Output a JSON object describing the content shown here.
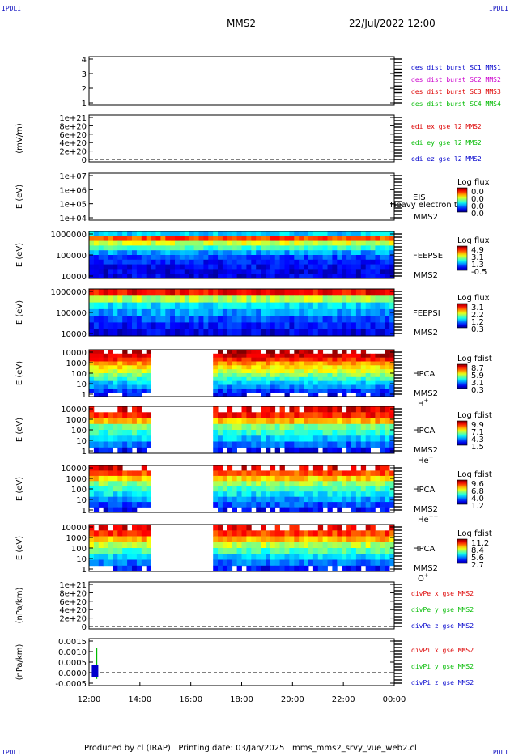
{
  "corners": {
    "tl": "IPDLI",
    "tr": "IPDLI",
    "bl": "IPDLI",
    "br": "IPDLI"
  },
  "header": {
    "spacecraft": "MMS2",
    "datetime": "22/Jul/2022 12:00"
  },
  "footer": {
    "produced": "Produced by cl (IRAP)",
    "printing": "Printing date: 03/Jan/2025",
    "file": "mms_mms2_srvy_vue_web2.cl"
  },
  "colors": {
    "red": "#dd0000",
    "green": "#00bb00",
    "blue": "#0000cc",
    "magenta": "#cc00cc"
  },
  "chart_data": {
    "type": "multi-panel time series / spectrogram",
    "x_ticks": [
      "12:00",
      "14:00",
      "16:00",
      "18:00",
      "20:00",
      "22:00",
      "00:00"
    ],
    "panels": [
      {
        "id": "burst",
        "kind": "lines",
        "yticks": [
          "1",
          "2",
          "3",
          "4"
        ],
        "ylabel": "",
        "legend": [
          {
            "text": "des dist burst SC1 MMS1",
            "color": "#0000cc"
          },
          {
            "text": "des dist burst SC2 MMS2",
            "color": "#cc00cc"
          },
          {
            "text": "des dist burst SC3 MMS3",
            "color": "#dd0000"
          },
          {
            "text": "des dist burst SC4 MMS4",
            "color": "#00bb00"
          }
        ]
      },
      {
        "id": "edi",
        "kind": "lines",
        "yticks": [
          "0",
          "2e+20",
          "4e+20",
          "6e+20",
          "8e+20",
          "1e+21"
        ],
        "ylabel": "(mV/m)",
        "zero_line": true,
        "legend": [
          {
            "text": "edi ex gse l2 MMS2",
            "color": "#dd0000"
          },
          {
            "text": "edi ey gse l2 MMS2",
            "color": "#00bb00"
          },
          {
            "text": "edi ez gse l2 MMS2",
            "color": "#0000cc"
          }
        ]
      },
      {
        "id": "eis",
        "kind": "spectrogram",
        "ylabel": "E (eV)",
        "yticks": [
          "1e+04",
          "1e+05",
          "1e+06",
          "1e+07"
        ],
        "labels": [
          "EIS",
          "MMS2"
        ],
        "overlay_text": "Heavy electron tof",
        "cbar_title": "Log flux",
        "cbar_ticks": [
          "0.0",
          "0.0",
          "0.0",
          "0.0"
        ],
        "rows": []
      },
      {
        "id": "feepse",
        "kind": "spectrogram",
        "ylabel": "E (eV)",
        "yticks": [
          "10000",
          "100000",
          "1000000"
        ],
        "labels": [
          "FEEPSE",
          "MMS2"
        ],
        "cbar_title": "Log flux",
        "cbar_ticks": [
          "4.9",
          "3.1",
          "1.3",
          "-0.5"
        ],
        "rows": [
          0.33,
          0.8,
          0.58,
          0.42,
          0.28,
          0.2,
          0.15,
          0.12,
          0.1,
          0.1
        ]
      },
      {
        "id": "feepsi",
        "kind": "spectrogram",
        "ylabel": "E (eV)",
        "yticks": [
          "10000",
          "100000",
          "1000000"
        ],
        "labels": [
          "FEEPSI",
          "MMS2"
        ],
        "cbar_title": "Log flux",
        "cbar_ticks": [
          "3.1",
          "2.2",
          "1.2",
          "0.3"
        ],
        "rows": [
          0.88,
          0.55,
          0.35,
          0.28,
          0.2,
          0.14,
          0.1
        ]
      },
      {
        "id": "hpca_h",
        "kind": "spectrogram",
        "ylabel": "E (eV)",
        "yticks": [
          "1",
          "10",
          "100",
          "1000",
          "10000"
        ],
        "labels": [
          "HPCA",
          "MMS2"
        ],
        "species": "H",
        "species_sup": "+",
        "cbar_title": "Log fdist",
        "cbar_ticks": [
          "8.7",
          "5.9",
          "3.1",
          "0.3"
        ],
        "gap": [
          14.4,
          16.9
        ],
        "rows": [
          0.95,
          0.92,
          0.85,
          0.72,
          0.64,
          0.58,
          0.5,
          0.42,
          0.34,
          0.26,
          0.18,
          0.12
        ]
      },
      {
        "id": "hpca_he",
        "kind": "spectrogram",
        "ylabel": "E (eV)",
        "yticks": [
          "1",
          "10",
          "100",
          "1000",
          "10000"
        ],
        "labels": [
          "HPCA",
          "MMS2"
        ],
        "species": "He",
        "species_sup": "+",
        "cbar_title": "Log fdist",
        "cbar_ticks": [
          "9.9",
          "7.1",
          "4.3",
          "1.5"
        ],
        "gap": [
          14.4,
          16.9
        ],
        "rows": [
          0.9,
          0.85,
          0.7,
          0.5,
          0.42,
          0.32,
          0.22,
          0.12
        ]
      },
      {
        "id": "hpca_hepp",
        "kind": "spectrogram",
        "ylabel": "E (eV)",
        "yticks": [
          "1",
          "10",
          "100",
          "1000",
          "10000"
        ],
        "labels": [
          "HPCA",
          "MMS2"
        ],
        "species": "He",
        "species_sup": "++",
        "cbar_title": "Log fdist",
        "cbar_ticks": [
          "9.6",
          "6.8",
          "4.0",
          "1.2"
        ],
        "gap": [
          14.4,
          16.8
        ],
        "rows": [
          0.9,
          0.8,
          0.66,
          0.52,
          0.44,
          0.36,
          0.28,
          0.2,
          0.12
        ]
      },
      {
        "id": "hpca_o",
        "kind": "spectrogram",
        "ylabel": "E (eV)",
        "yticks": [
          "1",
          "10",
          "100",
          "1000",
          "10000"
        ],
        "labels": [
          "HPCA",
          "MMS2"
        ],
        "species": "O",
        "species_sup": "+",
        "cbar_title": "Log fdist",
        "cbar_ticks": [
          "11.2",
          "8.4",
          "5.6",
          "2.7"
        ],
        "gap": [
          14.4,
          16.8
        ],
        "rows": [
          0.9,
          0.82,
          0.7,
          0.56,
          0.44,
          0.34,
          0.24,
          0.14
        ]
      },
      {
        "id": "divpe",
        "kind": "lines",
        "yticks": [
          "0",
          "2e+20",
          "4e+20",
          "6e+20",
          "8e+20",
          "1e+21"
        ],
        "ylabel": "(nPa/km)",
        "zero_line": true,
        "legend": [
          {
            "text": "divPe x gse MMS2",
            "color": "#dd0000"
          },
          {
            "text": "divPe y gse MMS2",
            "color": "#00bb00"
          },
          {
            "text": "divPe z gse MMS2",
            "color": "#0000cc"
          }
        ]
      },
      {
        "id": "divpi",
        "kind": "lines",
        "yticks": [
          "-0.0005",
          "0.0000",
          "0.0005",
          "0.0010",
          "0.0015"
        ],
        "ylabel": "(nPa/km)",
        "zero_line": true,
        "spike": {
          "t": 12.3,
          "max": 0.00118,
          "min": -0.0003
        },
        "legend": [
          {
            "text": "divPi x gse MMS2",
            "color": "#dd0000"
          },
          {
            "text": "divPi y gse MMS2",
            "color": "#00bb00"
          },
          {
            "text": "divPi z gse MMS2",
            "color": "#0000cc"
          }
        ]
      }
    ]
  }
}
